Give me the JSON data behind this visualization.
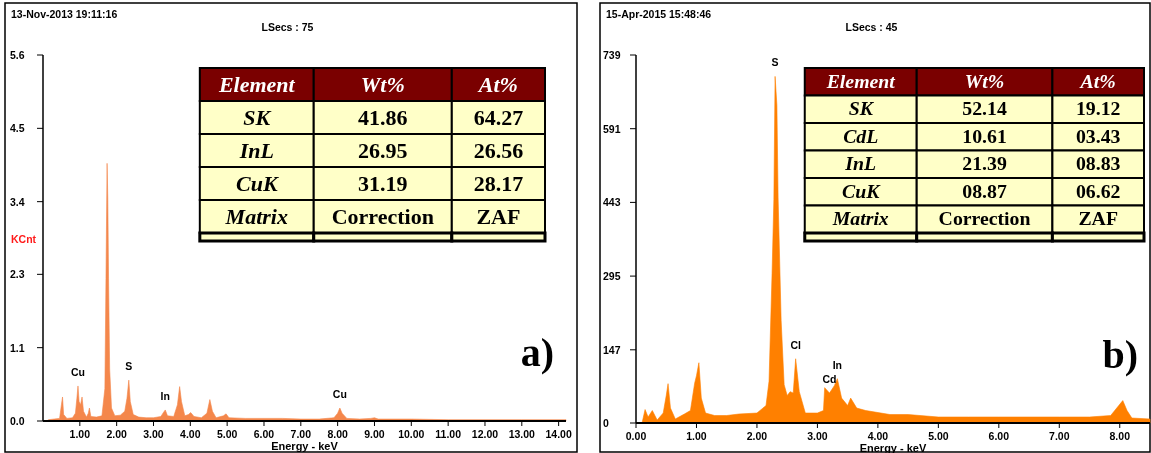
{
  "chart_data": [
    {
      "type": "area",
      "title": "13-Nov-2013 19:11:16",
      "subtitle": "LSecs : 75",
      "xlabel": "Energy - keV",
      "ylabel": "KCnt",
      "xlim": [
        0,
        14.2
      ],
      "ylim": [
        0,
        5.64
      ],
      "xticks": [
        {
          "value": 1,
          "label": "1.00"
        },
        {
          "value": 2,
          "label": "2.00"
        },
        {
          "value": 3,
          "label": "3.00"
        },
        {
          "value": 4,
          "label": "4.00"
        },
        {
          "value": 5,
          "label": "5.00"
        },
        {
          "value": 6,
          "label": "6.00"
        },
        {
          "value": 7,
          "label": "7.00"
        },
        {
          "value": 8,
          "label": "8.00"
        },
        {
          "value": 9,
          "label": "9.00"
        },
        {
          "value": 10,
          "label": "10.00"
        },
        {
          "value": 11,
          "label": "11.00"
        },
        {
          "value": 12,
          "label": "12.00"
        },
        {
          "value": 13,
          "label": "13.00"
        },
        {
          "value": 14,
          "label": "14.00"
        }
      ],
      "yticks": [
        {
          "value": 0,
          "label": "0.0"
        },
        {
          "value": 1.13,
          "label": "1.1"
        },
        {
          "value": 2.26,
          "label": "2.3"
        },
        {
          "value": 3.38,
          "label": "3.4"
        },
        {
          "value": 4.51,
          "label": "4.5"
        },
        {
          "value": 5.64,
          "label": "5.6"
        }
      ],
      "x": [
        0.1,
        0.15,
        0.3,
        0.45,
        0.5,
        0.53,
        0.56,
        0.65,
        0.8,
        0.88,
        0.92,
        0.95,
        0.98,
        1.02,
        1.06,
        1.1,
        1.18,
        1.23,
        1.26,
        1.3,
        1.45,
        1.6,
        1.68,
        1.71,
        1.74,
        1.76,
        1.78,
        1.81,
        1.86,
        1.95,
        2.1,
        2.22,
        2.28,
        2.33,
        2.37,
        2.45,
        2.6,
        2.8,
        3.0,
        3.2,
        3.28,
        3.32,
        3.38,
        3.55,
        3.65,
        3.71,
        3.76,
        3.85,
        3.95,
        4.01,
        4.1,
        4.3,
        4.45,
        4.53,
        4.6,
        4.7,
        4.9,
        4.97,
        5.05,
        5.5,
        6.0,
        6.5,
        7.0,
        7.5,
        7.9,
        8.0,
        8.06,
        8.12,
        8.25,
        8.6,
        8.9,
        9.0,
        9.1,
        10,
        11,
        12,
        13,
        14.2
      ],
      "series": [
        {
          "color": "#f4874b",
          "values": [
            0,
            0.02,
            0.03,
            0.04,
            0.25,
            0.37,
            0.1,
            0.04,
            0.05,
            0.12,
            0.35,
            0.54,
            0.3,
            0.25,
            0.37,
            0.15,
            0.06,
            0.12,
            0.2,
            0.07,
            0.06,
            0.08,
            0.5,
            2.2,
            3.97,
            3.41,
            2.2,
            0.8,
            0.2,
            0.08,
            0.09,
            0.15,
            0.35,
            0.63,
            0.3,
            0.1,
            0.06,
            0.05,
            0.05,
            0.07,
            0.14,
            0.17,
            0.08,
            0.07,
            0.25,
            0.53,
            0.3,
            0.08,
            0.1,
            0.13,
            0.07,
            0.05,
            0.12,
            0.33,
            0.15,
            0.05,
            0.08,
            0.11,
            0.05,
            0.04,
            0.04,
            0.04,
            0.03,
            0.03,
            0.05,
            0.12,
            0.2,
            0.12,
            0.04,
            0.03,
            0.04,
            0.05,
            0.03,
            0.03,
            0.02,
            0.02,
            0.02,
            0.02
          ]
        }
      ],
      "annotations": [
        "Element\tWt%\tAt%",
        "SK\t41.86\t64.27",
        "InL\t26.95\t26.56",
        "CuK\t31.19\t28.17",
        "Matrix\tCorrection\tZAF",
        "a)",
        {
          "text": "Cu",
          "x": 0.95,
          "y": 0.54
        },
        {
          "text": "S",
          "x": 2.33,
          "y": 0.63
        },
        {
          "text": "In",
          "x": 3.32,
          "y": 0.17
        },
        {
          "text": "Cu",
          "x": 8.06,
          "y": 0.2
        }
      ]
    },
    {
      "type": "area",
      "title": "15-Apr-2015 15:48:46",
      "subtitle": "LSecs : 45",
      "xlabel": "Energy - keV",
      "xlim": [
        0,
        8.5
      ],
      "ylim": [
        0,
        739
      ],
      "xticks": [
        {
          "value": 0,
          "label": "0.00"
        },
        {
          "value": 1,
          "label": "1.00"
        },
        {
          "value": 2,
          "label": "2.00"
        },
        {
          "value": 3,
          "label": "3.00"
        },
        {
          "value": 4,
          "label": "4.00"
        },
        {
          "value": 5,
          "label": "5.00"
        },
        {
          "value": 6,
          "label": "6.00"
        },
        {
          "value": 7,
          "label": "7.00"
        },
        {
          "value": 8,
          "label": "8.00"
        }
      ],
      "yticks": [
        0,
        147,
        295,
        443,
        591,
        739
      ],
      "x": [
        0.1,
        0.15,
        0.2,
        0.27,
        0.35,
        0.45,
        0.5,
        0.53,
        0.57,
        0.65,
        0.8,
        0.9,
        0.97,
        1.0,
        1.04,
        1.08,
        1.15,
        1.3,
        1.5,
        1.7,
        2.0,
        2.15,
        2.2,
        2.25,
        2.28,
        2.3,
        2.33,
        2.35,
        2.4,
        2.45,
        2.5,
        2.55,
        2.6,
        2.64,
        2.7,
        2.8,
        3.0,
        3.1,
        3.12,
        3.2,
        3.28,
        3.33,
        3.4,
        3.5,
        3.55,
        3.65,
        3.8,
        4.2,
        4.5,
        5.0,
        5.5,
        6.0,
        6.5,
        7.0,
        7.5,
        7.85,
        7.95,
        8.05,
        8.12,
        8.2,
        8.5
      ],
      "series": [
        {
          "color": "#ff8000",
          "values": [
            0,
            27,
            12,
            25,
            6,
            20,
            55,
            79,
            30,
            8,
            18,
            25,
            80,
            95,
            121,
            50,
            20,
            15,
            15,
            18,
            20,
            35,
            84,
            300,
            449,
            696,
            638,
            452,
            206,
            77,
            55,
            63,
            60,
            129,
            63,
            20,
            20,
            25,
            71,
            60,
            75,
            89,
            50,
            35,
            50,
            30,
            25,
            17,
            17,
            12,
            12,
            12,
            12,
            12,
            12,
            15,
            30,
            45,
            25,
            10,
            8
          ]
        }
      ],
      "annotations": [
        "Element\tWt%\tAt%",
        "SK\t52.14\t19.12",
        "CdL\t10.61\t03.43",
        "InL\t21.39\t08.83",
        "CuK\t08.87\t06.62",
        "Matrix\tCorrection\tZAF",
        "b)",
        {
          "text": "S",
          "x": 2.3,
          "y": 696
        },
        {
          "text": "Cl",
          "x": 2.64,
          "y": 129
        },
        {
          "text": "Cd",
          "x": 3.2,
          "y": 60
        },
        {
          "text": "In",
          "x": 3.33,
          "y": 89
        }
      ]
    }
  ]
}
